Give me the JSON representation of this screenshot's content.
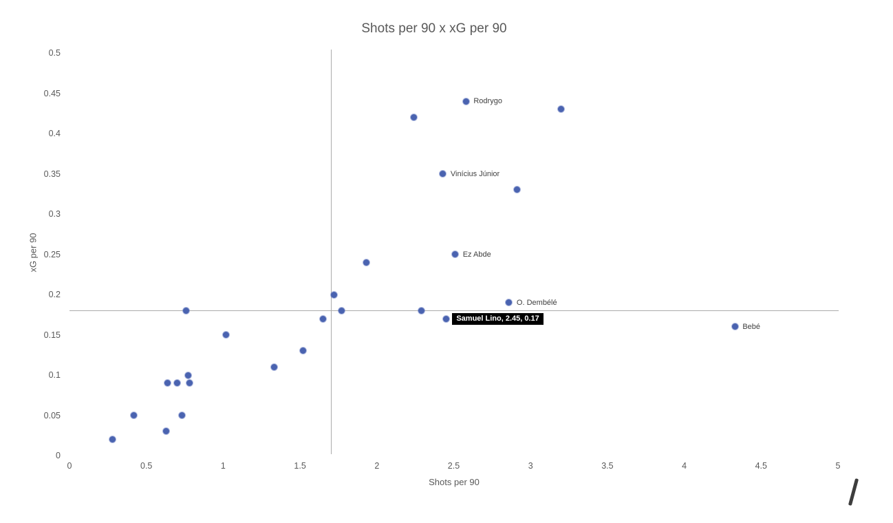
{
  "chart_data": {
    "type": "scatter",
    "title": "Shots per 90 x xG per 90",
    "xlabel": "Shots per 90",
    "ylabel": "xG per 90",
    "xlim": [
      0,
      5
    ],
    "ylim": [
      0,
      0.5
    ],
    "x_tick_labels": [
      "0",
      "0.5",
      "1",
      "1.5",
      "2",
      "2.5",
      "3",
      "3.5",
      "4",
      "4.5",
      "5"
    ],
    "y_tick_labels": [
      "0",
      "0.05",
      "0.1",
      "0.15",
      "0.2",
      "0.25",
      "0.3",
      "0.35",
      "0.4",
      "0.45",
      "0.5"
    ],
    "grid": false,
    "legend": false,
    "marker_color": "#4a63b0",
    "crosshair_color": "#ababab",
    "crosshair": {
      "x": 1.7,
      "y": 0.18
    },
    "points": [
      {
        "x": 0.28,
        "y": 0.02
      },
      {
        "x": 0.42,
        "y": 0.05
      },
      {
        "x": 0.63,
        "y": 0.03
      },
      {
        "x": 0.64,
        "y": 0.09
      },
      {
        "x": 0.7,
        "y": 0.09
      },
      {
        "x": 0.73,
        "y": 0.05
      },
      {
        "x": 0.76,
        "y": 0.18
      },
      {
        "x": 0.77,
        "y": 0.1
      },
      {
        "x": 0.78,
        "y": 0.09
      },
      {
        "x": 1.02,
        "y": 0.15
      },
      {
        "x": 1.33,
        "y": 0.11
      },
      {
        "x": 1.52,
        "y": 0.13
      },
      {
        "x": 1.65,
        "y": 0.17
      },
      {
        "x": 1.72,
        "y": 0.2
      },
      {
        "x": 1.77,
        "y": 0.18
      },
      {
        "x": 1.93,
        "y": 0.24
      },
      {
        "x": 2.24,
        "y": 0.42
      },
      {
        "x": 2.29,
        "y": 0.18
      },
      {
        "x": 2.43,
        "y": 0.35,
        "label": "Vinícius Júnior"
      },
      {
        "x": 2.45,
        "y": 0.17
      },
      {
        "x": 2.51,
        "y": 0.25,
        "label": "Ez Abde"
      },
      {
        "x": 2.58,
        "y": 0.44,
        "label": "Rodrygo"
      },
      {
        "x": 2.86,
        "y": 0.19,
        "label": "O. Dembélé"
      },
      {
        "x": 2.91,
        "y": 0.33
      },
      {
        "x": 3.2,
        "y": 0.43
      },
      {
        "x": 4.33,
        "y": 0.16,
        "label": "Bebé"
      }
    ],
    "tooltip": {
      "text": "Samuel Lino, 2.45, 0.17",
      "x": 2.45,
      "y": 0.17,
      "bg": "#000000",
      "color": "#ffffff"
    }
  },
  "annotation": {
    "slash": ""
  }
}
